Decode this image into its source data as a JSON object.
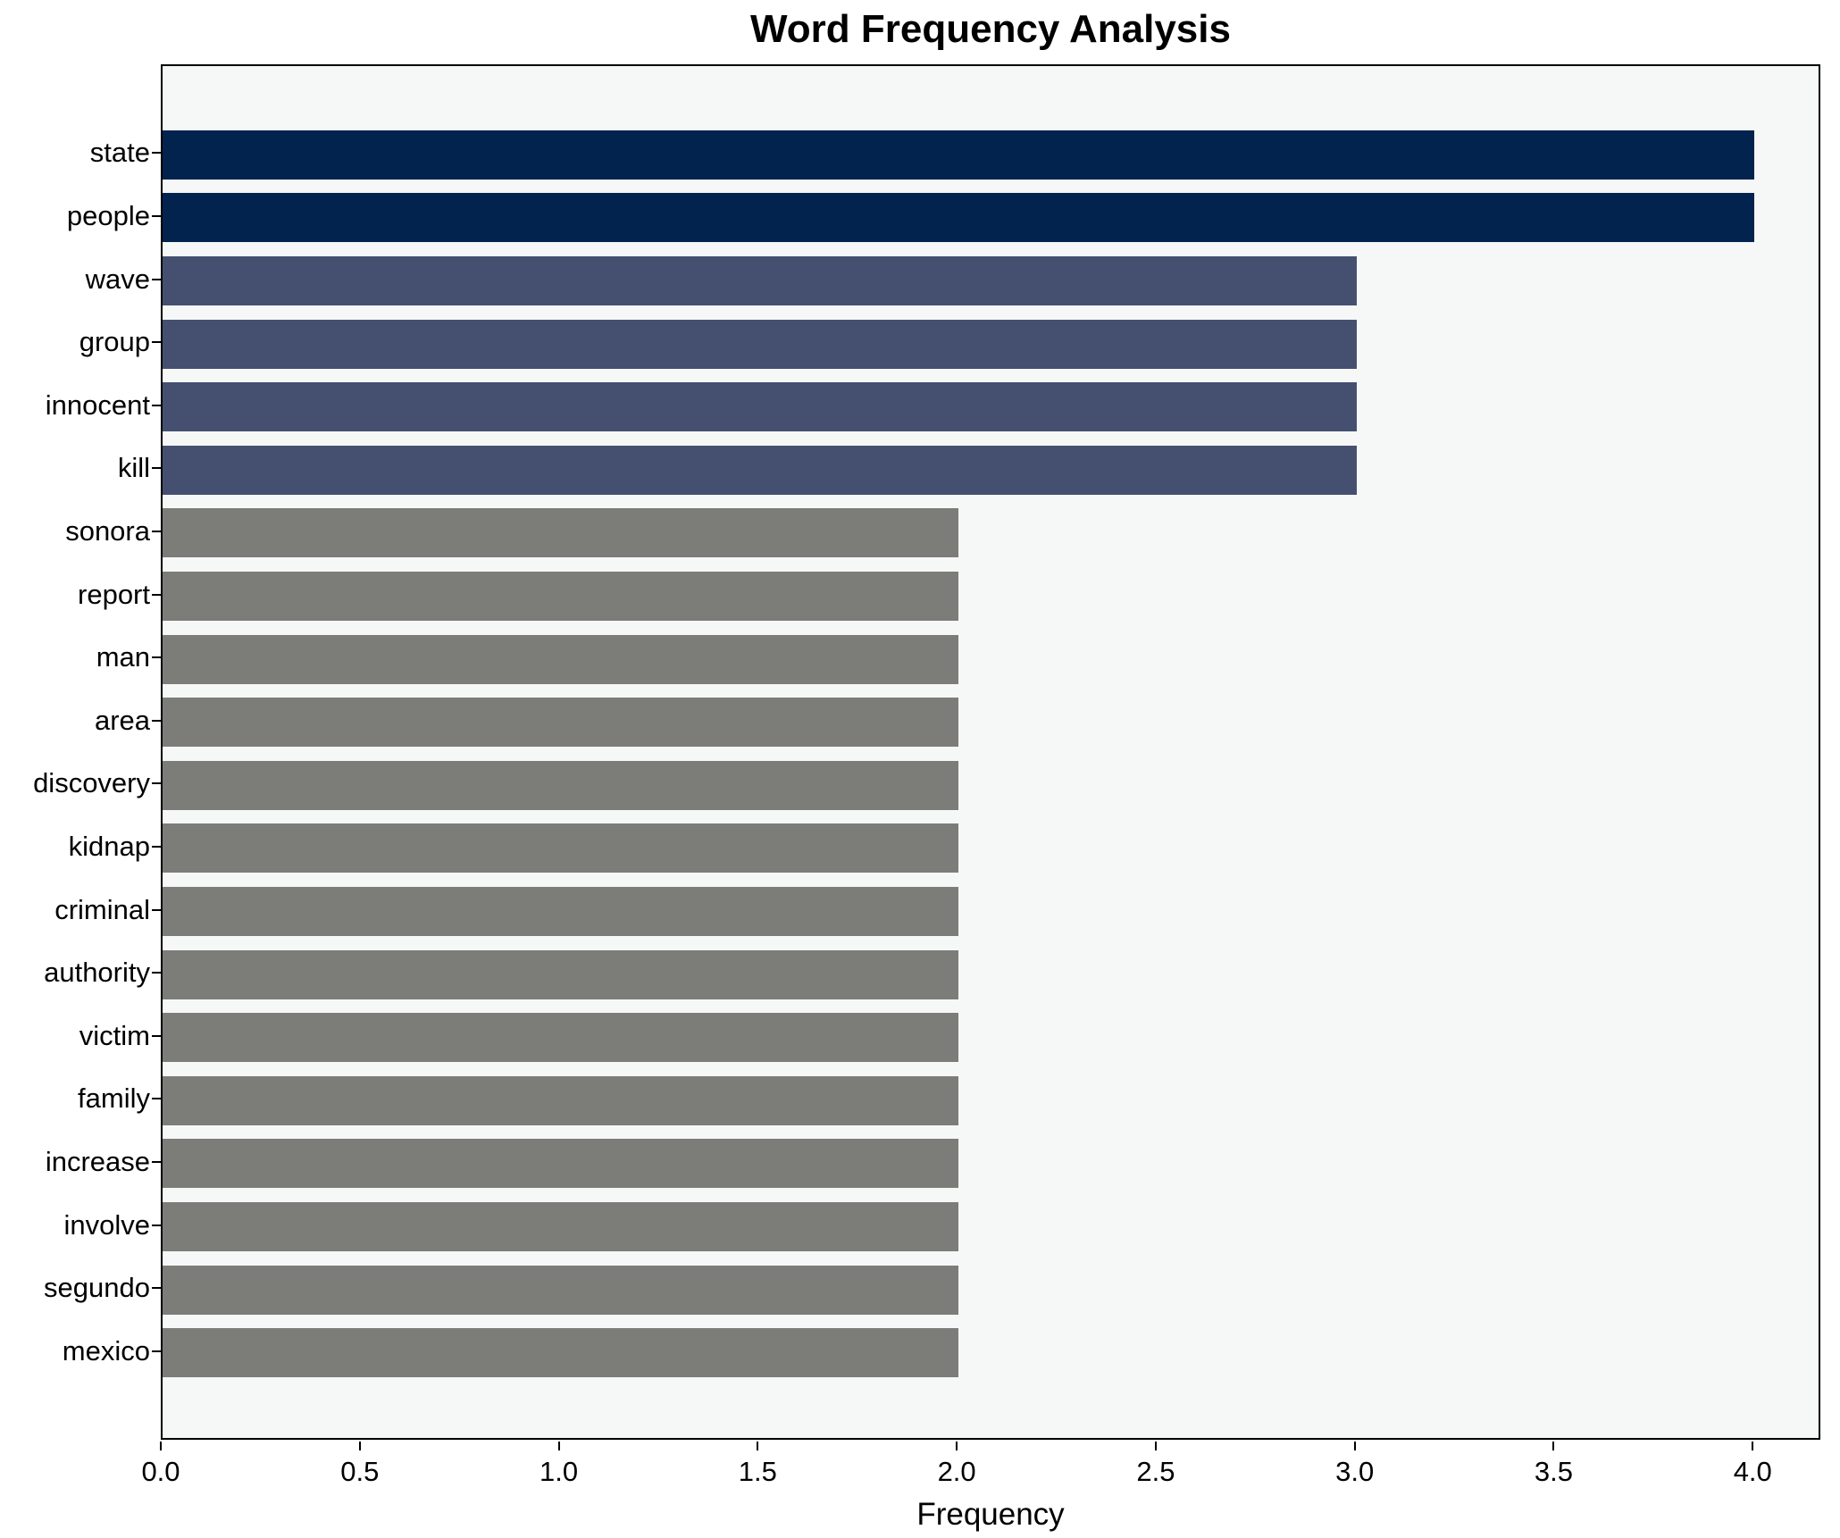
{
  "figure": {
    "title": "Word Frequency Analysis",
    "xlabel": "Frequency"
  },
  "chart_data": {
    "type": "bar",
    "orientation": "horizontal",
    "title": "Word Frequency Analysis",
    "xlabel": "Frequency",
    "ylabel": "",
    "categories": [
      "state",
      "people",
      "wave",
      "group",
      "innocent",
      "kill",
      "sonora",
      "report",
      "man",
      "area",
      "discovery",
      "kidnap",
      "criminal",
      "authority",
      "victim",
      "family",
      "increase",
      "involve",
      "segundo",
      "mexico"
    ],
    "values": [
      4,
      4,
      3,
      3,
      3,
      3,
      2,
      2,
      2,
      2,
      2,
      2,
      2,
      2,
      2,
      2,
      2,
      2,
      2,
      2
    ],
    "bar_colors": [
      "#02234e",
      "#02234e",
      "#455070",
      "#455070",
      "#455070",
      "#455070",
      "#7c7c79",
      "#7c7c79",
      "#7c7c79",
      "#7c7c79",
      "#7c7c79",
      "#7c7c79",
      "#7c7c79",
      "#7c7c79",
      "#7c7c79",
      "#7c7c79",
      "#7c7c79",
      "#7c7c79",
      "#7c7c79",
      "#7c7c79"
    ],
    "value_color_map": {
      "4": "#02234e",
      "3": "#455070",
      "2": "#7c7c79"
    },
    "xlim": [
      0,
      4.17
    ],
    "xticks": [
      0.0,
      0.5,
      1.0,
      1.5,
      2.0,
      2.5,
      3.0,
      3.5,
      4.0
    ],
    "xtick_labels": [
      "0.0",
      "0.5",
      "1.0",
      "1.5",
      "2.0",
      "2.5",
      "3.0",
      "3.5",
      "4.0"
    ],
    "grid": false,
    "legend_position": "none",
    "plot_background": "#f6f7f7",
    "figure_background": "#ffffff",
    "spine_color": "#000000"
  }
}
